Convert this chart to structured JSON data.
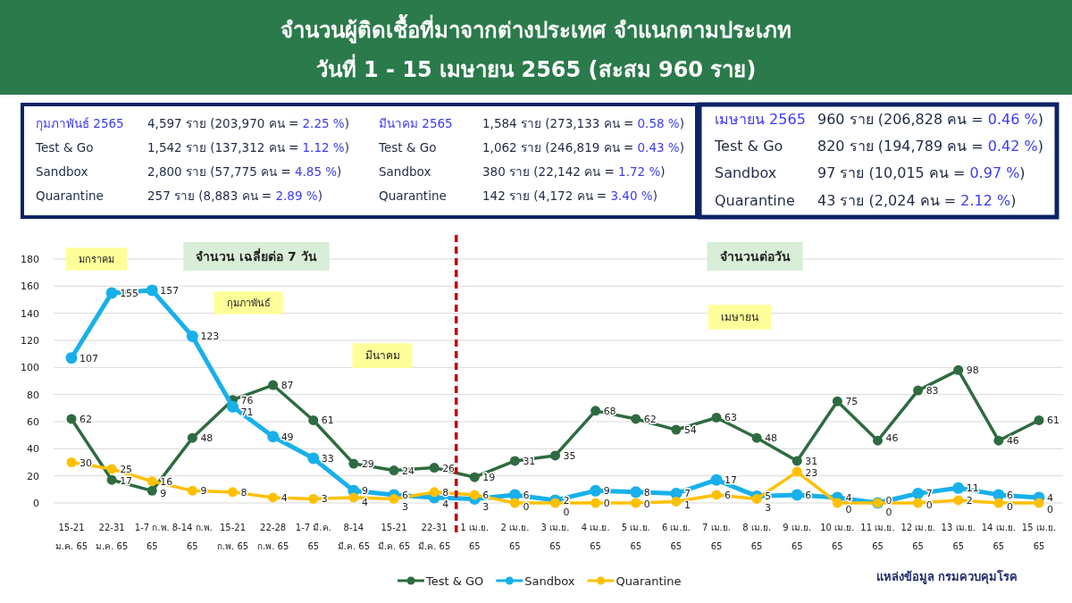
{
  "chart_data": [
    {
      "type": "other",
      "annotations": [
        "กุมภาพันธ์ 2565",
        "4,597 ราย (203,970 คน = 2.25 %)",
        "Test & Go",
        "1,542 ราย (137,312 คน  = 1.12 %)",
        "Sandbox",
        "2,800 ราย (57,775 คน  = 4.85 %)",
        "Quarantine",
        "257 ราย (8,883 คน    = 2.89 %)",
        "มีนาคม 2565",
        "1,584 ราย (273,133 คน = 0.58 %)",
        "Test & Go",
        "1,062 ราย (246,819 คน = 0.43 %)",
        "Sandbox",
        "380 ราย (22,142 คน  = 1.72 %)",
        "Quarantine",
        "142 ราย (4,172 คน  = 3.40 %)",
        "เมษายน 2565",
        "960 ราย (206,828 คน  = 0.46 %)",
        "Test & Go",
        "820 ราย (194,789 คน = 0.42 %)",
        "Sandbox",
        "97 ราย (10,015 คน  = 0.97 %)",
        "Quarantine",
        "43 ราย (2,024 คน  = 2.12 %)"
      ]
    },
    {
      "type": "line",
      "title": "จำนวนผู้ติดเชื้อที่มาจากต่างประเทศ จำแนกตามประเภท",
      "subtitle": "วันที่   1 - 15 เมษายน  2565 (สะสม 960 ราย)",
      "categories": [
        "15-21 ม.ค. 65",
        "22-31 ม.ค. 65",
        "1-7 ก.พ. 65",
        "8-14 ก.พ. 65",
        "15-21 ก.พ. 65",
        "22-28 ก.พ. 65",
        "1-7 มี.ค. 65",
        "8-14 มี.ค. 65",
        "15-21 มี.ค. 65",
        "22-31 มี.ค. 65",
        "1 เม.ย. 65",
        "2 เม.ย. 65",
        "3 เม.ย. 65",
        "4 เม.ย. 65",
        "5 เม.ย. 65",
        "6 เม.ย. 65",
        "7 เม.ย. 65",
        "8 เม.ย. 65",
        "9 เม.ย. 65",
        "10 เม.ย. 65",
        "11 เม.ย. 65",
        "12 เม.ย. 65",
        "13 เม.ย. 65",
        "14 เม.ย. 65",
        "15 เม.ย. 65"
      ],
      "series": [
        {
          "name": "Test & GO",
          "color": "#2e6b40",
          "values": [
            62,
            17,
            9,
            48,
            76,
            87,
            61,
            29,
            24,
            26,
            19,
            31,
            35,
            68,
            62,
            54,
            63,
            48,
            31,
            75,
            46,
            83,
            98,
            46,
            61
          ]
        },
        {
          "name": "Sandbox",
          "color": "#18b0ea",
          "values": [
            107,
            155,
            157,
            123,
            71,
            49,
            33,
            9,
            6,
            4,
            3,
            6,
            2,
            9,
            8,
            7,
            17,
            5,
            6,
            4,
            0,
            7,
            11,
            6,
            4
          ]
        },
        {
          "name": "Quarantine",
          "color": "#ffc000",
          "values": [
            30,
            25,
            16,
            9,
            8,
            4,
            3,
            4,
            3,
            8,
            6,
            0,
            0,
            0,
            0,
            1,
            6,
            3,
            23,
            0,
            0,
            0,
            2,
            0,
            0
          ]
        }
      ],
      "ylim": [
        0,
        180
      ],
      "yticks": [
        0,
        20,
        40,
        60,
        80,
        100,
        120,
        140,
        160,
        180
      ],
      "grid": "y",
      "legend": "bottom",
      "marker": "circle",
      "line_style": "solid",
      "data_labels": true,
      "ref_lines": [
        {
          "axis": "x",
          "value": "1 เม.ย. 65",
          "color": "#c00000",
          "line_style": "dashed"
        }
      ],
      "annotations": [
        "มกราคม",
        "จำนวน เฉลี่ยต่อ 7 วัน",
        "กุมภาพันธ์",
        "มีนาคม",
        "จำนวนต่อวัน",
        "เมษายน",
        "แหล่งข้อมูล กรมควบคุมโรค"
      ]
    }
  ]
}
